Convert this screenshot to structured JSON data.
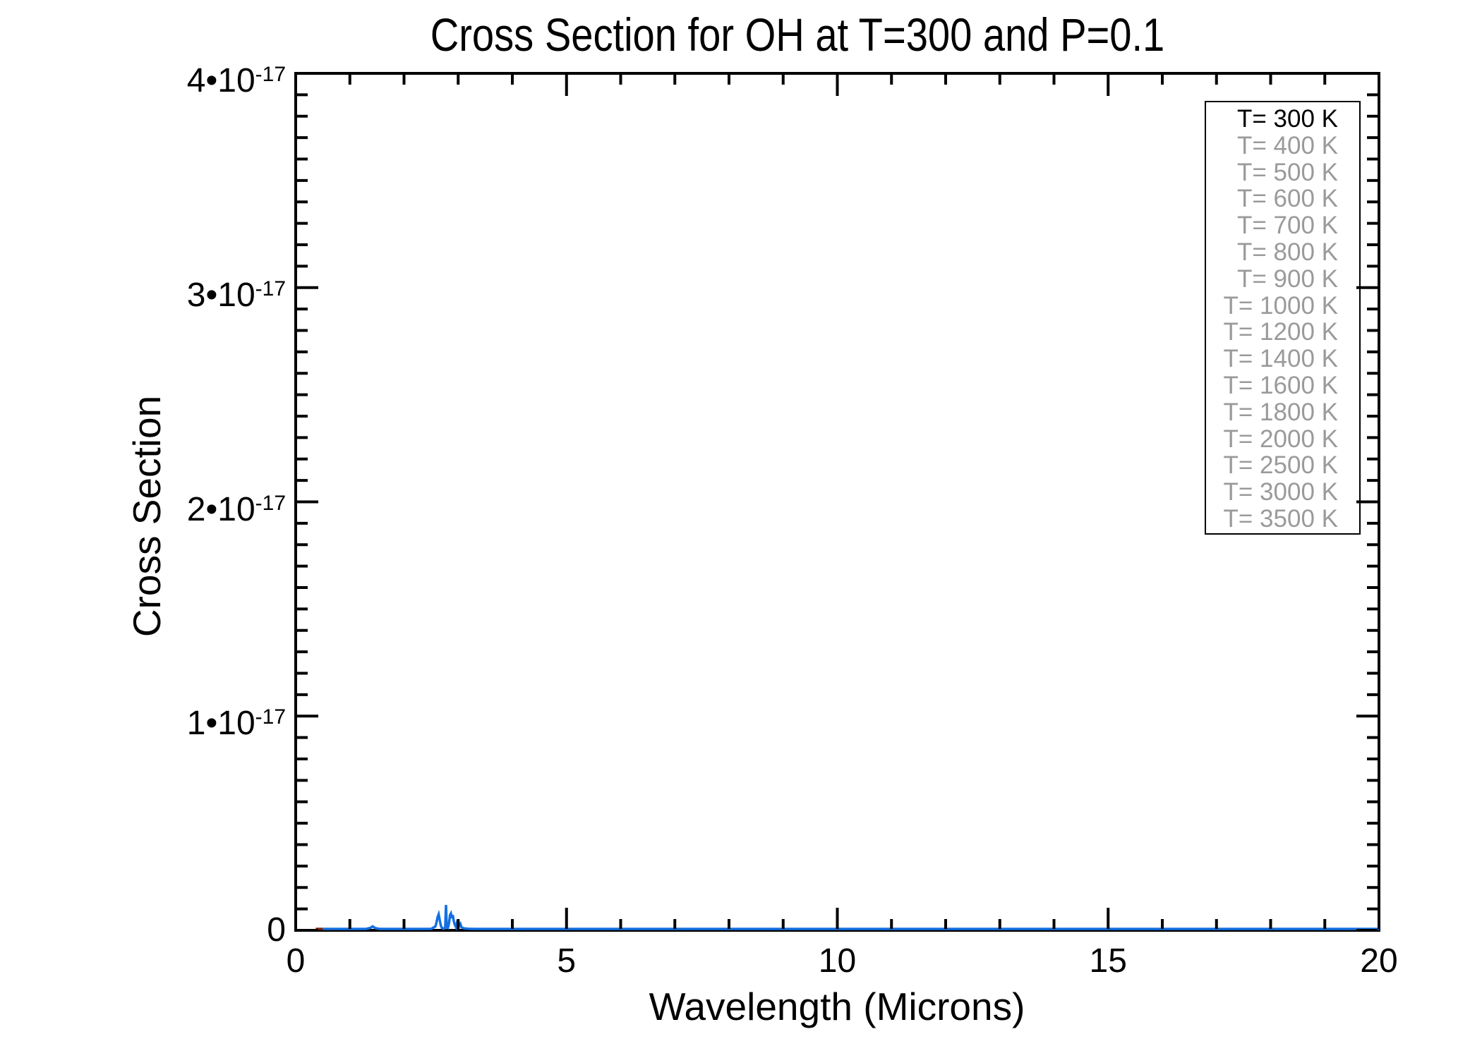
{
  "title": "Cross Section for OH at T=300 and P=0.1",
  "x_axis": {
    "title": "Wavelength (Microns)",
    "min": 0,
    "max": 20,
    "minor_step": 1,
    "major_ticks": [
      {
        "value": 0,
        "label": "0"
      },
      {
        "value": 5,
        "label": "5"
      },
      {
        "value": 10,
        "label": "10"
      },
      {
        "value": 15,
        "label": "15"
      },
      {
        "value": 20,
        "label": "20"
      }
    ]
  },
  "y_axis": {
    "title": "Cross Section",
    "min": 0,
    "max": 4e-17,
    "minor_step": 1e-18,
    "major_ticks": [
      {
        "value": 0,
        "label": "0",
        "coef": "",
        "exp": ""
      },
      {
        "value": 1e-17,
        "label": "1•10^-17",
        "coef": "1•10",
        "exp": "-17"
      },
      {
        "value": 2e-17,
        "label": "2•10^-17",
        "coef": "2•10",
        "exp": "-17"
      },
      {
        "value": 3e-17,
        "label": "3•10^-17",
        "coef": "3•10",
        "exp": "-17"
      },
      {
        "value": 4e-17,
        "label": "4•10^-17",
        "coef": "4•10",
        "exp": "-17"
      }
    ]
  },
  "legend": {
    "entries": [
      {
        "label": "T= 300 K",
        "active": true
      },
      {
        "label": "T= 400 K",
        "active": false
      },
      {
        "label": "T= 500 K",
        "active": false
      },
      {
        "label": "T= 600 K",
        "active": false
      },
      {
        "label": "T= 700 K",
        "active": false
      },
      {
        "label": "T= 800 K",
        "active": false
      },
      {
        "label": "T= 900 K",
        "active": false
      },
      {
        "label": "T= 1000 K",
        "active": false
      },
      {
        "label": "T= 1200 K",
        "active": false
      },
      {
        "label": "T= 1400 K",
        "active": false
      },
      {
        "label": "T= 1600 K",
        "active": false
      },
      {
        "label": "T= 1800 K",
        "active": false
      },
      {
        "label": "T= 2000 K",
        "active": false
      },
      {
        "label": "T= 2500 K",
        "active": false
      },
      {
        "label": "T= 3000 K",
        "active": false
      },
      {
        "label": "T= 3500 K",
        "active": false
      }
    ]
  },
  "colors": {
    "curve": "#1470e1",
    "pre_segment": "#7b2408",
    "axis": "#000000",
    "legend_active": "#000000",
    "legend_inactive": "#9a9a9a",
    "background": "#ffffff"
  },
  "chart_data": {
    "type": "line",
    "title": "Cross Section for OH at T=300 and P=0.1",
    "xlabel": "Wavelength (Microns)",
    "ylabel": "Cross Section",
    "xlim": [
      0,
      20
    ],
    "ylim": [
      0,
      4e-17
    ],
    "grid": false,
    "legend_position": "top-right-inside",
    "legend_entries": [
      "T= 300 K",
      "T= 400 K",
      "T= 500 K",
      "T= 600 K",
      "T= 700 K",
      "T= 800 K",
      "T= 900 K",
      "T= 1000 K",
      "T= 1200 K",
      "T= 1400 K",
      "T= 1600 K",
      "T= 1800 K",
      "T= 2000 K",
      "T= 2500 K",
      "T= 3000 K",
      "T= 3500 K"
    ],
    "series": [
      {
        "name": "T= 300 K",
        "color": "#1470e1",
        "points": [
          [
            0.5,
            0
          ],
          [
            1.3,
            0
          ],
          [
            1.38,
            5e-20
          ],
          [
            1.42,
            1.2e-19
          ],
          [
            1.47,
            4e-20
          ],
          [
            1.55,
            0
          ],
          [
            2.5,
            0
          ],
          [
            2.58,
            1.2e-19
          ],
          [
            2.6,
            3e-19
          ],
          [
            2.62,
            5.5e-19
          ],
          [
            2.64,
            6.8e-19
          ],
          [
            2.66,
            4e-19
          ],
          [
            2.68,
            1.5e-19
          ],
          [
            2.7,
            5e-20
          ],
          [
            2.73,
            1e-20
          ],
          [
            2.76,
            4e-20
          ],
          [
            2.775,
            1.12e-18
          ],
          [
            2.79,
            8e-20
          ],
          [
            2.81,
            5e-20
          ],
          [
            2.83,
            2.5e-19
          ],
          [
            2.85,
            6.5e-19
          ],
          [
            2.865,
            7.2e-19
          ],
          [
            2.885,
            5e-19
          ],
          [
            2.9,
            6.5e-19
          ],
          [
            2.92,
            3.5e-19
          ],
          [
            2.94,
            1.8e-19
          ],
          [
            2.96,
            8e-20
          ],
          [
            2.99,
            4.2e-19
          ],
          [
            3.01,
            1.2e-19
          ],
          [
            3.04,
            2.4e-19
          ],
          [
            3.06,
            8e-20
          ],
          [
            3.1,
            3e-20
          ],
          [
            3.18,
            1e-20
          ],
          [
            3.3,
            0
          ],
          [
            4,
            0
          ],
          [
            6,
            0
          ],
          [
            8,
            0
          ],
          [
            10,
            0
          ],
          [
            12,
            0
          ],
          [
            14,
            0
          ],
          [
            16,
            0
          ],
          [
            18,
            0
          ],
          [
            20,
            0
          ]
        ]
      },
      {
        "name": "baseline-start-segment",
        "color": "#7b2408",
        "points": [
          [
            0.37,
            0
          ],
          [
            0.5,
            0
          ]
        ]
      }
    ]
  }
}
